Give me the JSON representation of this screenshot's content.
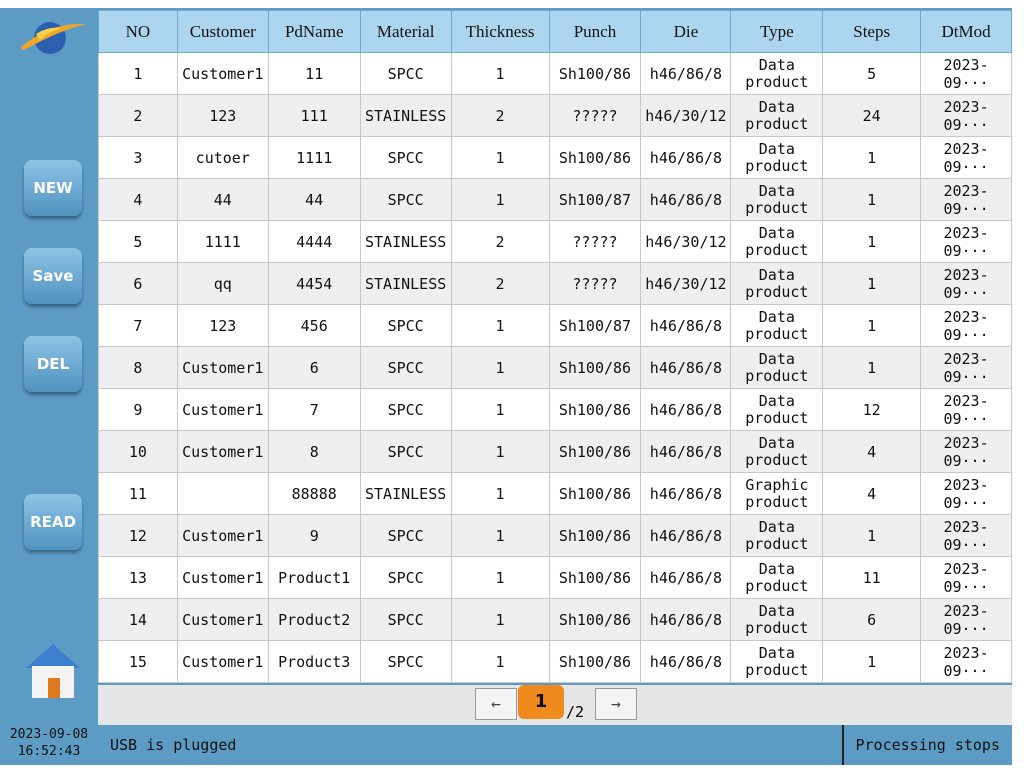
{
  "sidebar": {
    "buttons": [
      "NEW",
      "Save",
      "DEL",
      "READ"
    ],
    "date": "2023-09-08",
    "time": "16:52:43"
  },
  "table": {
    "columns": [
      "NO",
      "Customer",
      "PdName",
      "Material",
      "Thickness",
      "Punch",
      "Die",
      "Type",
      "Steps",
      "DtMod"
    ],
    "rows": [
      [
        "1",
        "Customer1",
        "11",
        "SPCC",
        "1",
        "Sh100/86",
        "h46/86/8",
        "Data product",
        "5",
        "2023-09···"
      ],
      [
        "2",
        "123",
        "111",
        "STAINLESS",
        "2",
        "?????",
        "h46/30/12",
        "Data product",
        "24",
        "2023-09···"
      ],
      [
        "3",
        "cutoer",
        "1111",
        "SPCC",
        "1",
        "Sh100/86",
        "h46/86/8",
        "Data product",
        "1",
        "2023-09···"
      ],
      [
        "4",
        "44",
        "44",
        "SPCC",
        "1",
        "Sh100/87",
        "h46/86/8",
        "Data product",
        "1",
        "2023-09···"
      ],
      [
        "5",
        "1111",
        "4444",
        "STAINLESS",
        "2",
        "?????",
        "h46/30/12",
        "Data product",
        "1",
        "2023-09···"
      ],
      [
        "6",
        "qq",
        "4454",
        "STAINLESS",
        "2",
        "?????",
        "h46/30/12",
        "Data product",
        "1",
        "2023-09···"
      ],
      [
        "7",
        "123",
        "456",
        "SPCC",
        "1",
        "Sh100/87",
        "h46/86/8",
        "Data product",
        "1",
        "2023-09···"
      ],
      [
        "8",
        "Customer1",
        "6",
        "SPCC",
        "1",
        "Sh100/86",
        "h46/86/8",
        "Data product",
        "1",
        "2023-09···"
      ],
      [
        "9",
        "Customer1",
        "7",
        "SPCC",
        "1",
        "Sh100/86",
        "h46/86/8",
        "Data product",
        "12",
        "2023-09···"
      ],
      [
        "10",
        "Customer1",
        "8",
        "SPCC",
        "1",
        "Sh100/86",
        "h46/86/8",
        "Data product",
        "4",
        "2023-09···"
      ],
      [
        "11",
        null,
        "88888",
        "STAINLESS",
        "1",
        "Sh100/86",
        "h46/86/8",
        "Graphic product",
        "4",
        "2023-09···"
      ],
      [
        "12",
        "Customer1",
        "9",
        "SPCC",
        "1",
        "Sh100/86",
        "h46/86/8",
        "Data product",
        "1",
        "2023-09···"
      ],
      [
        "13",
        "Customer1",
        "Product1",
        "SPCC",
        "1",
        "Sh100/86",
        "h46/86/8",
        "Data product",
        "11",
        "2023-09···"
      ],
      [
        "14",
        "Customer1",
        "Product2",
        "SPCC",
        "1",
        "Sh100/86",
        "h46/86/8",
        "Data product",
        "6",
        "2023-09···"
      ],
      [
        "15",
        "Customer1",
        "Product3",
        "SPCC",
        "1",
        "Sh100/86",
        "h46/86/8",
        "Data product",
        "1",
        "2023-09···"
      ]
    ]
  },
  "pagination": {
    "prev": "←",
    "page": "1",
    "total": "/2",
    "next": "→"
  },
  "status": {
    "usb": "USB is plugged",
    "process": "Processing stops"
  }
}
